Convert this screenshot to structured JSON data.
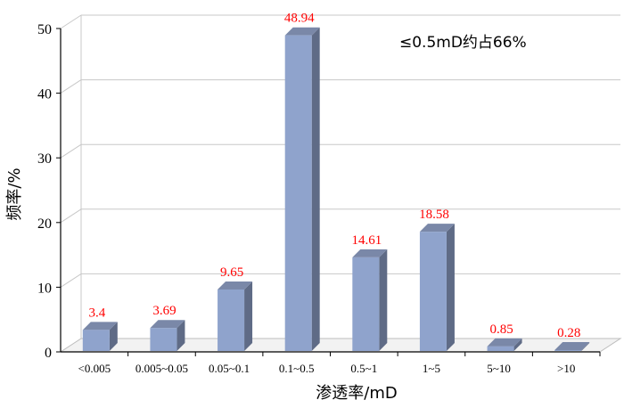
{
  "chart_data": {
    "type": "bar",
    "categories": [
      "<0.005",
      "0.005~0.05",
      "0.05~0.1",
      "0.1~0.5",
      "0.5~1",
      "1~5",
      "5~10",
      ">10"
    ],
    "values": [
      3.4,
      3.69,
      9.65,
      48.94,
      14.61,
      18.58,
      0.85,
      0.28
    ],
    "data_labels": [
      "3.4",
      "3.69",
      "9.65",
      "48.94",
      "14.61",
      "18.58",
      "0.85",
      "0.28"
    ],
    "y_ticks": [
      "0",
      "10",
      "20",
      "30",
      "40",
      "50"
    ],
    "ylim": [
      0,
      50
    ],
    "xlabel": "渗透率/mD",
    "ylabel": "频率/%",
    "annotation": "≤0.5mD约占66%",
    "grid": true,
    "style": "3d-bar",
    "colors": {
      "bar_front": "#8fa3cc",
      "bar_side": "#5f6b86",
      "bar_top": "#7a88a8",
      "data_label": "#ff0000",
      "grid": "#c8c8c8"
    }
  }
}
